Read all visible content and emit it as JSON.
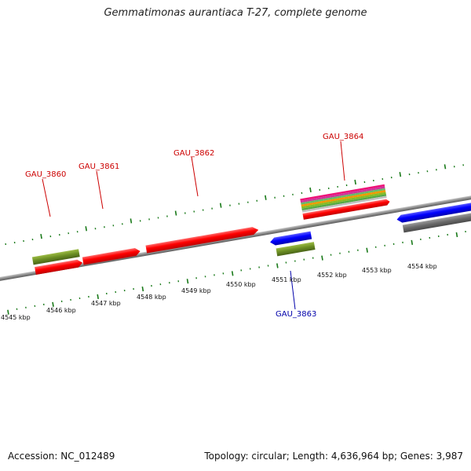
{
  "title": "Gemmatimonas aurantiaca T-27, complete genome",
  "footer": {
    "accession": "Accession: NC_012489",
    "stats": "Topology: circular; Length: 4,636,964 bp; Genes: 3,987"
  },
  "ticks": [
    "4545 kbp",
    "4546 kbp",
    "4547 kbp",
    "4548 kbp",
    "4549 kbp",
    "4550 kbp",
    "4551 kbp",
    "4552 kbp",
    "4553 kbp",
    "4554 kbp"
  ],
  "genes": [
    {
      "id": "GAU_3860",
      "strand": "+",
      "color": "#ff0000"
    },
    {
      "id": "GAU_3861",
      "strand": "+",
      "color": "#ff0000"
    },
    {
      "id": "GAU_3862",
      "strand": "+",
      "color": "#ff0000"
    },
    {
      "id": "GAU_3863",
      "strand": "-",
      "color": "#0000ff"
    },
    {
      "id": "GAU_3864",
      "strand": "+",
      "color": "#ff0000"
    }
  ],
  "colors": {
    "forward_gene": "#ff0000",
    "reverse_gene": "#0000ff",
    "label_forward": "#cc0000",
    "label_reverse": "#0000aa",
    "feature_green": "#6b8e23",
    "tick_green": "#1a7a1a",
    "backbone": "#8a8a8a",
    "gray_feature": "#707070"
  }
}
